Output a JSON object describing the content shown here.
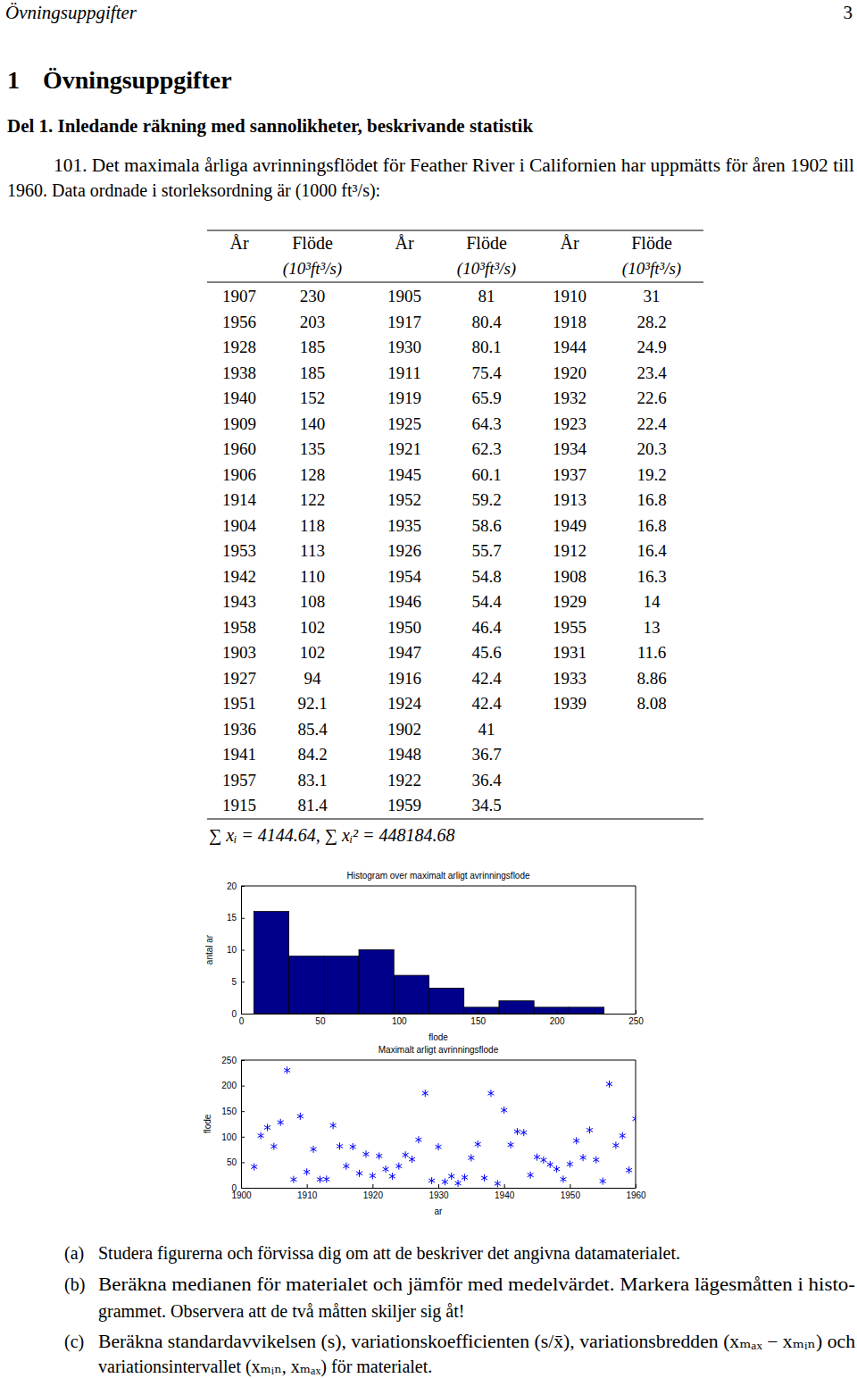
{
  "header": {
    "title": "Övningsuppgifter",
    "page": "3"
  },
  "section": {
    "number": "1",
    "title": "Övningsuppgifter"
  },
  "subsection": "Del 1. Inledande räkning med sannolikheter, beskrivande statistik",
  "problem": [
    "101. Det maximala årliga avrinningsflödet för Feather River i Californien har uppmätts för åren 1902 till",
    "1960. Data ordnade i storleksordning är (1000 ft³/s):"
  ],
  "table": {
    "columns": [
      {
        "year_header": "År",
        "flow_header": "Flöde",
        "unit": "(10³ft³/s)",
        "years": [
          1907,
          1956,
          1928,
          1938,
          1940,
          1909,
          1960,
          1906,
          1914,
          1904,
          1953,
          1942,
          1943,
          1958,
          1903,
          1927,
          1951,
          1936,
          1941,
          1957,
          1915
        ],
        "flows": [
          230,
          203,
          185,
          185,
          152,
          140,
          135,
          128,
          122,
          118,
          113,
          110,
          108,
          102,
          102,
          94,
          92.1,
          85.4,
          84.2,
          83.1,
          81.4
        ]
      },
      {
        "year_header": "År",
        "flow_header": "Flöde",
        "unit": "(10³ft³/s)",
        "years": [
          1905,
          1917,
          1930,
          1911,
          1919,
          1925,
          1921,
          1945,
          1952,
          1935,
          1926,
          1954,
          1946,
          1950,
          1947,
          1916,
          1924,
          1902,
          1948,
          1922,
          1959
        ],
        "flows": [
          81,
          80.4,
          80.1,
          75.4,
          65.9,
          64.3,
          62.3,
          60.1,
          59.2,
          58.6,
          55.7,
          54.8,
          54.4,
          46.4,
          45.6,
          42.4,
          42.4,
          41,
          36.7,
          36.4,
          34.5
        ]
      },
      {
        "year_header": "År",
        "flow_header": "Flöde",
        "unit": "(10³ft³/s)",
        "years": [
          1910,
          1918,
          1944,
          1920,
          1932,
          1923,
          1934,
          1937,
          1913,
          1949,
          1912,
          1908,
          1929,
          1955,
          1931,
          1933,
          1939
        ],
        "flows": [
          31,
          28.2,
          24.9,
          23.4,
          22.6,
          22.4,
          20.3,
          19.2,
          16.8,
          16.8,
          16.4,
          16.3,
          14,
          13,
          11.6,
          8.86,
          8.08
        ]
      }
    ],
    "sums": "∑ xᵢ = 4144.64, ∑ xᵢ² = 448184.68"
  },
  "chart_data": [
    {
      "type": "histogram",
      "title": "Histogram over maximalt arligt avrinningsflode",
      "x_label": "flode",
      "y_label": "antal ar",
      "bins": [
        8.08,
        30.27,
        52.46,
        74.66,
        96.85,
        119.04,
        141.23,
        163.42,
        185.62,
        207.81,
        230
      ],
      "counts": [
        16,
        9,
        9,
        10,
        6,
        4,
        1,
        2,
        1,
        1
      ],
      "color": "#00008b",
      "xlim": [
        0,
        250
      ],
      "xticks": [
        0,
        50,
        100,
        150,
        200,
        250
      ],
      "ylim": [
        0,
        20
      ],
      "yticks": [
        0,
        5,
        10,
        15,
        20
      ]
    },
    {
      "type": "scatter",
      "title": "Maximalt arligt avrinningsflode",
      "x_label": "ar",
      "y_label": "flode",
      "x": [
        1907,
        1956,
        1928,
        1938,
        1940,
        1909,
        1960,
        1906,
        1914,
        1904,
        1953,
        1942,
        1943,
        1958,
        1903,
        1927,
        1951,
        1936,
        1941,
        1957,
        1915,
        1905,
        1917,
        1930,
        1911,
        1919,
        1925,
        1921,
        1945,
        1952,
        1935,
        1926,
        1954,
        1946,
        1950,
        1947,
        1916,
        1924,
        1902,
        1948,
        1922,
        1959,
        1910,
        1918,
        1944,
        1920,
        1932,
        1923,
        1934,
        1937,
        1913,
        1949,
        1912,
        1908,
        1929,
        1955,
        1931,
        1933,
        1939
      ],
      "values": [
        230,
        203,
        185,
        185,
        152,
        140,
        135,
        128,
        122,
        118,
        113,
        110,
        108,
        102,
        102,
        94,
        92.1,
        85.4,
        84.2,
        83.1,
        81.4,
        81,
        80.4,
        80.1,
        75.4,
        65.9,
        64.3,
        62.3,
        60.1,
        59.2,
        58.6,
        55.7,
        54.8,
        54.4,
        46.4,
        45.6,
        42.4,
        42.4,
        41,
        36.7,
        36.4,
        34.5,
        31,
        28.2,
        24.9,
        23.4,
        22.6,
        22.4,
        20.3,
        19.2,
        16.8,
        16.8,
        16.4,
        16.3,
        14,
        13,
        11.6,
        8.86,
        8.08
      ],
      "marker": "asterisk",
      "color": "#0000ff",
      "xlim": [
        1900,
        1960
      ],
      "xticks": [
        1900,
        1910,
        1920,
        1930,
        1940,
        1950,
        1960
      ],
      "ylim": [
        0,
        250
      ],
      "yticks": [
        0,
        50,
        100,
        150,
        200,
        250
      ]
    }
  ],
  "questions": [
    {
      "label": "(a)",
      "lines": [
        "Studera figurerna och förvissa dig om att de beskriver det angivna datamaterialet."
      ]
    },
    {
      "label": "(b)",
      "lines": [
        "Beräkna medianen för materialet och jämför med medelvärdet. Markera lägesmåtten i histo-",
        "grammet. Observera att de två måtten skiljer sig åt!"
      ]
    },
    {
      "label": "(c)",
      "lines": [
        "Beräkna standardavvikelsen (s), variationskoefficienten (s/x̄), variationsbredden (xₘₐₓ − xₘᵢₙ) och",
        "variationsintervallet (xₘᵢₙ, xₘₐₓ) för materialet."
      ]
    }
  ]
}
